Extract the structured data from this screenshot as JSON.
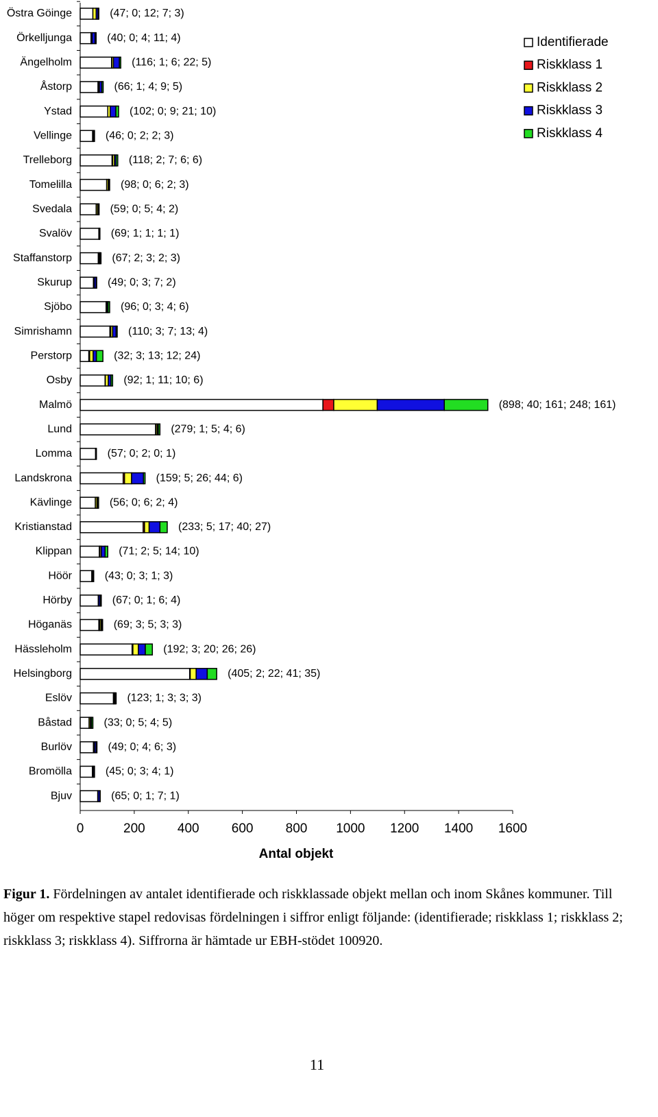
{
  "chart_data": {
    "type": "stacked-barh",
    "xlabel": "Antal objekt",
    "categories": [
      "Östra Göinge",
      "Örkelljunga",
      "Ängelholm",
      "Åstorp",
      "Ystad",
      "Vellinge",
      "Trelleborg",
      "Tomelilla",
      "Svedala",
      "Svalöv",
      "Staffanstorp",
      "Skurup",
      "Sjöbo",
      "Simrishamn",
      "Perstorp",
      "Osby",
      "Malmö",
      "Lund",
      "Lomma",
      "Landskrona",
      "Kävlinge",
      "Kristianstad",
      "Klippan",
      "Höör",
      "Hörby",
      "Höganäs",
      "Hässleholm",
      "Helsingborg",
      "Eslöv",
      "Båstad",
      "Burlöv",
      "Bromölla",
      "Bjuv"
    ],
    "series": [
      {
        "name": "Identifierade",
        "color": "#ffffff",
        "values": [
          47,
          40,
          116,
          66,
          102,
          46,
          118,
          98,
          59,
          69,
          67,
          49,
          96,
          110,
          32,
          92,
          898,
          279,
          57,
          159,
          56,
          233,
          71,
          43,
          67,
          69,
          192,
          405,
          123,
          33,
          49,
          45,
          65
        ]
      },
      {
        "name": "Riskklass 1",
        "color": "#e8161b",
        "values": [
          0,
          0,
          1,
          1,
          0,
          0,
          2,
          0,
          0,
          1,
          2,
          0,
          0,
          3,
          3,
          1,
          40,
          1,
          0,
          5,
          0,
          5,
          2,
          0,
          0,
          3,
          3,
          2,
          1,
          0,
          0,
          0,
          0
        ]
      },
      {
        "name": "Riskklass 2",
        "color": "#ffff33",
        "values": [
          12,
          4,
          6,
          4,
          9,
          2,
          7,
          6,
          5,
          1,
          3,
          3,
          3,
          7,
          13,
          11,
          161,
          5,
          2,
          26,
          6,
          17,
          5,
          3,
          1,
          5,
          20,
          22,
          3,
          5,
          4,
          3,
          1
        ]
      },
      {
        "name": "Riskklass 3",
        "color": "#1010e0",
        "values": [
          7,
          11,
          22,
          9,
          21,
          2,
          6,
          2,
          4,
          1,
          2,
          7,
          4,
          13,
          12,
          10,
          248,
          4,
          0,
          44,
          2,
          40,
          14,
          1,
          6,
          3,
          26,
          41,
          3,
          4,
          6,
          4,
          7
        ]
      },
      {
        "name": "Riskklass 4",
        "color": "#22dd22",
        "values": [
          3,
          4,
          5,
          5,
          10,
          3,
          6,
          3,
          2,
          1,
          3,
          2,
          6,
          4,
          24,
          6,
          161,
          6,
          1,
          6,
          4,
          27,
          10,
          3,
          4,
          3,
          26,
          35,
          3,
          5,
          3,
          1,
          1
        ]
      }
    ],
    "value_labels": [
      "(47; 0; 12; 7; 3)",
      "(40; 0; 4; 11; 4)",
      "(116; 1; 6; 22; 5)",
      "(66; 1; 4; 9; 5)",
      "(102; 0; 9; 21; 10)",
      "(46; 0; 2; 2; 3)",
      "(118; 2; 7; 6; 6)",
      "(98; 0; 6; 2; 3)",
      "(59; 0; 5; 4; 2)",
      "(69; 1; 1; 1; 1)",
      "(67; 2; 3; 2; 3)",
      "(49; 0; 3; 7; 2)",
      "(96; 0; 3; 4; 6)",
      "(110; 3; 7; 13; 4)",
      "(32; 3; 13; 12; 24)",
      "(92; 1; 11; 10; 6)",
      "(898; 40; 161; 248; 161)",
      "(279; 1; 5; 4; 6)",
      "(57; 0; 2; 0; 1)",
      "(159; 5; 26; 44; 6)",
      "(56; 0; 6; 2; 4)",
      "(233; 5; 17; 40; 27)",
      "(71; 2; 5; 14; 10)",
      "(43; 0; 3; 1; 3)",
      "(67; 0; 1; 6; 4)",
      "(69; 3; 5; 3; 3)",
      "(192; 3; 20; 26; 26)",
      "(405; 2; 22; 41; 35)",
      "(123; 1; 3; 3; 3)",
      "(33; 0; 5; 4; 5)",
      "(49; 0; 4; 6; 3)",
      "(45; 0; 3; 4; 1)",
      "(65; 0; 1; 7; 1)"
    ],
    "xlim": [
      0,
      1600
    ],
    "xticks": [
      0,
      200,
      400,
      600,
      800,
      1000,
      1200,
      1400,
      1600
    ],
    "legend": "top-right"
  },
  "caption": {
    "label": "Figur 1.",
    "text": " Fördelningen av antalet identifierade och riskklassade objekt mellan och inom Skånes kommuner. Till höger om respektive stapel redovisas fördelningen i siffror enligt följande: (identifierade; riskklass 1; riskklass 2; riskklass 3; riskklass 4). Siffrorna är hämtade ur EBH-stödet 100920."
  },
  "page_number": "11"
}
